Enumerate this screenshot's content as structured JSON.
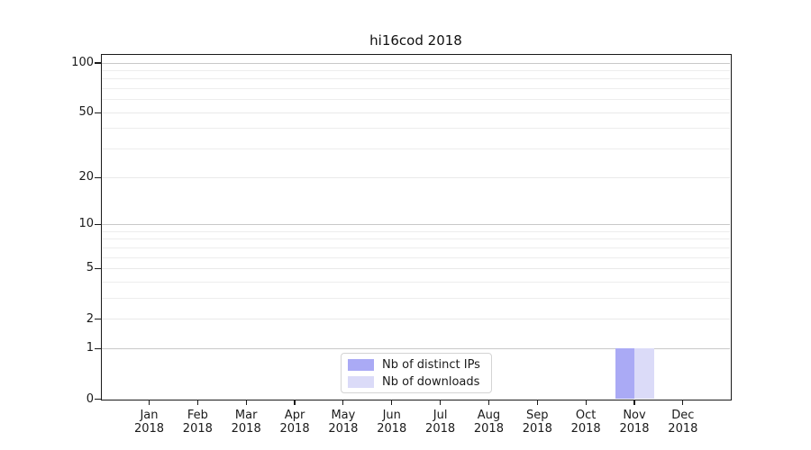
{
  "chart_data": {
    "type": "bar",
    "title": "hi16cod 2018",
    "x_categories": [
      {
        "month": "Jan",
        "year": "2018"
      },
      {
        "month": "Feb",
        "year": "2018"
      },
      {
        "month": "Mar",
        "year": "2018"
      },
      {
        "month": "Apr",
        "year": "2018"
      },
      {
        "month": "May",
        "year": "2018"
      },
      {
        "month": "Jun",
        "year": "2018"
      },
      {
        "month": "Jul",
        "year": "2018"
      },
      {
        "month": "Aug",
        "year": "2018"
      },
      {
        "month": "Sep",
        "year": "2018"
      },
      {
        "month": "Oct",
        "year": "2018"
      },
      {
        "month": "Nov",
        "year": "2018"
      },
      {
        "month": "Dec",
        "year": "2018"
      }
    ],
    "series": [
      {
        "name": "Nb of distinct IPs",
        "color": "#aaaaf5",
        "values": [
          0,
          0,
          0,
          0,
          0,
          0,
          0,
          0,
          0,
          0,
          1,
          0
        ]
      },
      {
        "name": "Nb of downloads",
        "color": "#dbdbf8",
        "values": [
          0,
          0,
          0,
          0,
          0,
          0,
          0,
          0,
          0,
          0,
          1,
          0
        ]
      }
    ],
    "y_axis": {
      "scale": "log1p",
      "ticks": [
        0,
        1,
        2,
        5,
        10,
        20,
        50,
        100
      ],
      "decade_gridlines": [
        1,
        10,
        100
      ],
      "minor_gridlines": [
        3,
        4,
        6,
        7,
        8,
        9,
        30,
        40,
        60,
        70,
        80,
        90
      ],
      "range": [
        0,
        113
      ]
    },
    "xlabel": "",
    "ylabel": "",
    "grid": true,
    "legend": {
      "position": "lower center",
      "entries": [
        "Nb of distinct IPs",
        "Nb of downloads"
      ]
    }
  }
}
